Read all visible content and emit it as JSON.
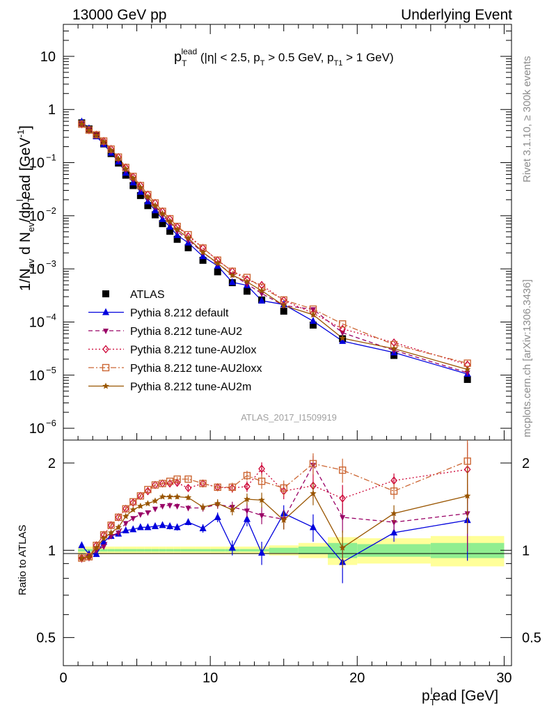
{
  "header": {
    "left": "13000 GeV pp",
    "right": "Underlying Event"
  },
  "side_labels": {
    "rivet": "Rivet 3.1.10, ≥ 300k events",
    "mcplots": "mcplots.cern.ch [arXiv:1306.3436]"
  },
  "analysis_label": "ATLAS_2017_I1509919",
  "plot_title": {
    "main": "p",
    "sub": "T",
    "sup": "lead",
    "rest": " (|η| < 2.5, p",
    "rest_sub": "T",
    "rest2": " > 0.5 GeV, p",
    "rest2_sub": "T1",
    "rest3": " > 1 GeV)"
  },
  "axes": {
    "ylabel_main": "1/N",
    "ylabel_ev": "ev",
    "ylabel_mid": " d N",
    "ylabel_ev2": "ev",
    "ylabel_mid2": "/dp",
    "ylabel_T": "T",
    "ylabel_l": "l",
    "ylabel_end": "ead [GeV",
    "ylabel_exp": "-1",
    "ylabel_close": "]",
    "xlabel_p": "p",
    "xlabel_T": "T",
    "xlabel_l": "l",
    "xlabel_end": "ead [GeV]",
    "ratio_ylabel": "Ratio to ATLAS"
  },
  "legend": [
    {
      "label": "ATLAS"
    },
    {
      "label": "Pythia 8.212 default"
    },
    {
      "label": "Pythia 8.212 tune-AU2"
    },
    {
      "label": "Pythia 8.212 tune-AU2lox"
    },
    {
      "label": "Pythia 8.212 tune-AU2loxx"
    },
    {
      "label": "Pythia 8.212 tune-AU2m"
    }
  ],
  "chart_data": [
    {
      "type": "scatter",
      "panel": "main",
      "yscale": "log",
      "xlim": [
        0,
        30.5
      ],
      "ylim": [
        6e-07,
        40
      ],
      "x_ticks": [
        0,
        10,
        20,
        30
      ],
      "y_tick_labels": [
        {
          "v": 10,
          "m": "10",
          "e": ""
        },
        {
          "v": 1,
          "m": "1",
          "e": ""
        },
        {
          "v": 0.1,
          "m": "10",
          "e": "−1"
        },
        {
          "v": 0.01,
          "m": "10",
          "e": "−2"
        },
        {
          "v": 0.001,
          "m": "10",
          "e": "−3"
        },
        {
          "v": 0.0001,
          "m": "10",
          "e": "−4"
        },
        {
          "v": 1e-05,
          "m": "10",
          "e": "−5"
        },
        {
          "v": 1e-06,
          "m": "10",
          "e": "−6"
        }
      ],
      "x": [
        1.25,
        1.75,
        2.25,
        2.75,
        3.25,
        3.75,
        4.25,
        4.75,
        5.25,
        5.75,
        6.25,
        6.75,
        7.25,
        7.75,
        8.5,
        9.5,
        10.5,
        11.5,
        12.5,
        13.5,
        15,
        17,
        19,
        22.5,
        27.5
      ],
      "series": [
        {
          "name": "ATLAS",
          "color": "#000000",
          "marker": "square",
          "values": [
            0.56,
            0.43,
            0.32,
            0.225,
            0.148,
            0.098,
            0.058,
            0.037,
            0.024,
            0.0155,
            0.0104,
            0.0071,
            0.0051,
            0.0036,
            0.0025,
            0.00145,
            0.00088,
            0.00055,
            0.00038,
            0.00026,
            0.00016,
            8.75e-05,
            4.85e-05,
            2.35e-05,
            8.3e-06
          ]
        },
        {
          "name": "Pythia 8.212 default",
          "color": "#0000dd",
          "marker": "triangle-up",
          "line": "solid",
          "values": [
            0.59,
            0.44,
            0.31,
            0.222,
            0.152,
            0.104,
            0.064,
            0.042,
            0.028,
            0.0185,
            0.0126,
            0.0086,
            0.0062,
            0.0043,
            0.0031,
            0.00172,
            0.00114,
            0.00056,
            0.00049,
            0.000252,
            0.000214,
            0.000104,
            4.37e-05,
            2.66e-05,
            1.05e-05
          ]
        },
        {
          "name": "Pythia 8.212 tune-AU2",
          "color": "#990066",
          "marker": "triangle-down",
          "line": "dashed",
          "values": [
            0.52,
            0.4,
            0.32,
            0.232,
            0.165,
            0.113,
            0.072,
            0.048,
            0.032,
            0.021,
            0.0145,
            0.0101,
            0.0073,
            0.0051,
            0.0035,
            0.00203,
            0.00127,
            0.00078,
            0.00052,
            0.000344,
            0.000205,
            0.000173,
            6.3e-05,
            2.93e-05,
            1.11e-05
          ]
        },
        {
          "name": "Pythia 8.212 tune-AU2lox",
          "color": "#cc0033",
          "marker": "diamond",
          "line": "dotted",
          "values": [
            0.53,
            0.41,
            0.335,
            0.255,
            0.18,
            0.127,
            0.081,
            0.054,
            0.037,
            0.025,
            0.0174,
            0.0121,
            0.0087,
            0.0062,
            0.0041,
            0.00247,
            0.00145,
            0.0009,
            0.00063,
            0.000495,
            0.000257,
            0.000146,
            7.4e-05,
            4.1e-05,
            1.57e-05
          ]
        },
        {
          "name": "Pythia 8.212 tune-AU2loxx",
          "color": "#cc6633",
          "marker": "open-square",
          "line": "dashdot",
          "values": [
            0.53,
            0.41,
            0.335,
            0.255,
            0.18,
            0.127,
            0.081,
            0.055,
            0.037,
            0.025,
            0.0174,
            0.0121,
            0.0088,
            0.0063,
            0.0044,
            0.00247,
            0.00146,
            0.0009,
            0.00069,
            0.00045,
            0.00026,
            0.000175,
            9.2e-05,
            3.75e-05,
            1.68e-05
          ]
        },
        {
          "name": "Pythia 8.212 tune-AU2m",
          "color": "#995500",
          "marker": "star",
          "line": "solid",
          "values": [
            0.53,
            0.405,
            0.325,
            0.248,
            0.17,
            0.118,
            0.076,
            0.051,
            0.034,
            0.0225,
            0.0154,
            0.0109,
            0.0078,
            0.0055,
            0.0038,
            0.00205,
            0.00128,
            0.00076,
            0.00057,
            0.000388,
            0.000204,
            0.000137,
            4.95e-05,
            3.15e-05,
            1.28e-05
          ]
        }
      ]
    },
    {
      "type": "line",
      "panel": "ratio",
      "yscale": "log",
      "xlim": [
        0,
        30.5
      ],
      "ylim": [
        0.4,
        2.4
      ],
      "x_ticks": [
        0,
        10,
        20,
        30
      ],
      "y_ticks": [
        0.5,
        1,
        2
      ],
      "y_tick_labels": [
        "0.5",
        "1",
        "2"
      ],
      "band_edges": [
        1,
        1.5,
        2,
        2.5,
        3,
        3.5,
        4,
        4.5,
        5,
        5.5,
        6,
        6.5,
        7,
        7.5,
        8,
        9,
        10,
        11,
        12,
        13,
        14,
        16,
        18,
        20,
        25,
        30
      ],
      "stat_band_halfwidth": [
        0.01,
        0.01,
        0.01,
        0.01,
        0.01,
        0.01,
        0.01,
        0.01,
        0.01,
        0.01,
        0.01,
        0.01,
        0.01,
        0.01,
        0.01,
        0.01,
        0.01,
        0.01,
        0.01,
        0.01,
        0.02,
        0.03,
        0.06,
        0.05,
        0.06
      ],
      "total_band_halfwidth": [
        0.03,
        0.03,
        0.03,
        0.03,
        0.03,
        0.03,
        0.03,
        0.03,
        0.03,
        0.03,
        0.03,
        0.03,
        0.03,
        0.03,
        0.03,
        0.03,
        0.03,
        0.03,
        0.03,
        0.03,
        0.04,
        0.06,
        0.11,
        0.1,
        0.12
      ],
      "x": [
        1.25,
        1.75,
        2.25,
        2.75,
        3.25,
        3.75,
        4.25,
        4.75,
        5.25,
        5.75,
        6.25,
        6.75,
        7.25,
        7.75,
        8.5,
        9.5,
        10.5,
        11.5,
        12.5,
        13.5,
        15,
        17,
        19,
        22.5,
        27.5
      ],
      "series": [
        {
          "name": "Pythia 8.212 default",
          "color": "#0000dd",
          "marker": "triangle-up",
          "line": "solid",
          "values": [
            1.04,
            0.97,
            0.97,
            1.07,
            1.12,
            1.14,
            1.17,
            1.18,
            1.2,
            1.2,
            1.21,
            1.22,
            1.21,
            1.2,
            1.25,
            1.19,
            1.3,
            1.02,
            1.28,
            0.98,
            1.34,
            1.2,
            0.91,
            1.15,
            1.27
          ],
          "err": [
            0.02,
            0.02,
            0.02,
            0.02,
            0.02,
            0.02,
            0.02,
            0.02,
            0.02,
            0.02,
            0.02,
            0.02,
            0.03,
            0.03,
            0.03,
            0.04,
            0.05,
            0.06,
            0.07,
            0.09,
            0.09,
            0.13,
            0.14,
            0.08,
            0.35
          ]
        },
        {
          "name": "Pythia 8.212 tune-AU2",
          "color": "#990066",
          "marker": "triangle-down",
          "line": "dashed",
          "values": [
            0.93,
            0.94,
            1.0,
            1.03,
            1.12,
            1.15,
            1.24,
            1.29,
            1.33,
            1.35,
            1.39,
            1.42,
            1.43,
            1.42,
            1.4,
            1.4,
            1.44,
            1.41,
            1.37,
            1.32,
            1.28,
            1.97,
            1.3,
            1.25,
            1.34
          ],
          "err": [
            0.02,
            0.02,
            0.02,
            0.02,
            0.02,
            0.02,
            0.02,
            0.02,
            0.02,
            0.02,
            0.02,
            0.02,
            0.03,
            0.03,
            0.03,
            0.04,
            0.05,
            0.06,
            0.07,
            0.09,
            0.1,
            0.15,
            0.15,
            0.08,
            0.35
          ]
        },
        {
          "name": "Pythia 8.212 tune-AU2lox",
          "color": "#cc0033",
          "marker": "diamond",
          "line": "dotted",
          "values": [
            0.94,
            0.95,
            1.04,
            1.13,
            1.22,
            1.3,
            1.39,
            1.46,
            1.54,
            1.6,
            1.68,
            1.7,
            1.7,
            1.71,
            1.64,
            1.7,
            1.65,
            1.64,
            1.66,
            1.91,
            1.6,
            1.67,
            1.51,
            1.74,
            1.9
          ],
          "err": [
            0.02,
            0.02,
            0.02,
            0.02,
            0.02,
            0.02,
            0.02,
            0.02,
            0.02,
            0.02,
            0.02,
            0.02,
            0.03,
            0.03,
            0.03,
            0.04,
            0.05,
            0.06,
            0.07,
            0.1,
            0.1,
            0.16,
            0.17,
            0.1,
            0.45
          ]
        },
        {
          "name": "Pythia 8.212 tune-AU2loxx",
          "color": "#cc6633",
          "marker": "open-square",
          "line": "dashdot",
          "values": [
            0.94,
            0.95,
            1.04,
            1.13,
            1.22,
            1.3,
            1.39,
            1.47,
            1.54,
            1.62,
            1.68,
            1.7,
            1.73,
            1.76,
            1.76,
            1.7,
            1.65,
            1.65,
            1.81,
            1.73,
            1.64,
            1.99,
            1.89,
            1.6,
            2.03
          ],
          "err": [
            0.02,
            0.02,
            0.02,
            0.02,
            0.02,
            0.02,
            0.02,
            0.02,
            0.02,
            0.02,
            0.02,
            0.02,
            0.03,
            0.03,
            0.03,
            0.04,
            0.05,
            0.06,
            0.07,
            0.1,
            0.1,
            0.17,
            0.18,
            0.1,
            0.45
          ]
        },
        {
          "name": "Pythia 8.212 tune-AU2m",
          "color": "#995500",
          "marker": "star",
          "line": "solid",
          "values": [
            0.94,
            0.95,
            1.02,
            1.1,
            1.15,
            1.2,
            1.31,
            1.38,
            1.42,
            1.45,
            1.48,
            1.53,
            1.53,
            1.53,
            1.52,
            1.41,
            1.45,
            1.38,
            1.5,
            1.49,
            1.27,
            1.57,
            1.02,
            1.34,
            1.54
          ],
          "err": [
            0.02,
            0.02,
            0.02,
            0.02,
            0.02,
            0.02,
            0.02,
            0.02,
            0.02,
            0.02,
            0.02,
            0.02,
            0.03,
            0.03,
            0.03,
            0.04,
            0.05,
            0.06,
            0.07,
            0.09,
            0.09,
            0.14,
            0.15,
            0.09,
            0.4
          ]
        }
      ]
    }
  ]
}
